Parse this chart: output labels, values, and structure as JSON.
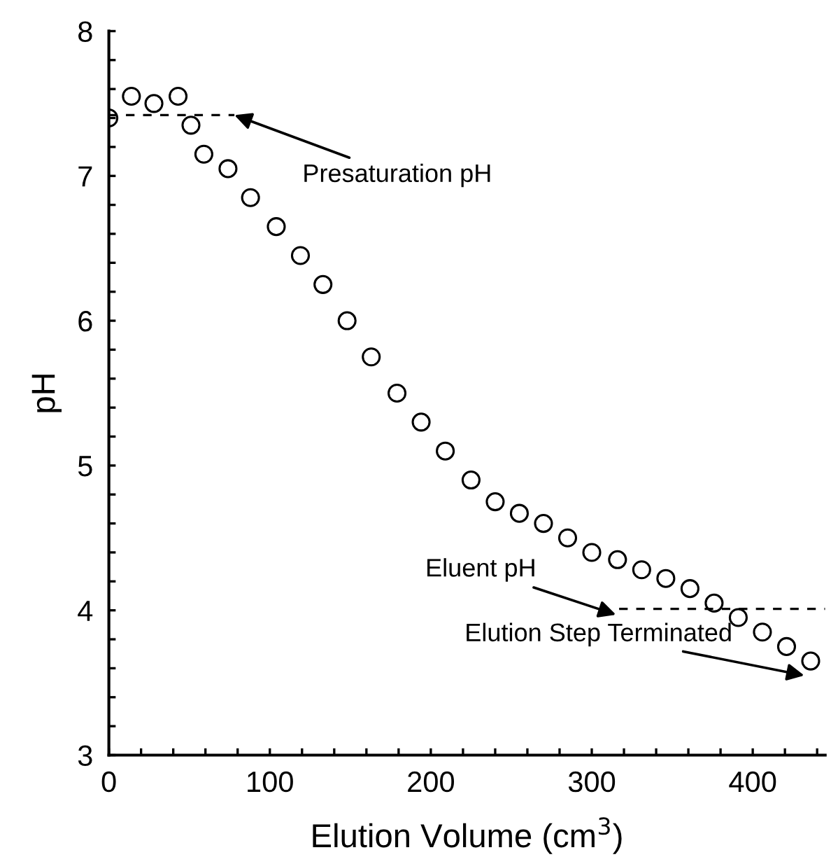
{
  "chart_data": {
    "type": "scatter",
    "xlabel": "Elution Volume (cm$^{3}$)",
    "ylabel": "pH",
    "xlim": [
      0,
      445
    ],
    "ylim": [
      3,
      8
    ],
    "xticks": [
      0,
      {
        "value": 20,
        "label": null
      },
      {
        "value": 40,
        "label": null
      },
      {
        "value": 60,
        "label": null
      },
      {
        "value": 80,
        "label": null
      },
      100,
      {
        "value": 120,
        "label": null
      },
      {
        "value": 140,
        "label": null
      },
      {
        "value": 160,
        "label": null
      },
      {
        "value": 180,
        "label": null
      },
      200,
      {
        "value": 220,
        "label": null
      },
      {
        "value": 240,
        "label": null
      },
      {
        "value": 260,
        "label": null
      },
      {
        "value": 280,
        "label": null
      },
      300,
      {
        "value": 320,
        "label": null
      },
      {
        "value": 340,
        "label": null
      },
      {
        "value": 360,
        "label": null
      },
      {
        "value": 380,
        "label": null
      },
      400,
      {
        "value": 420,
        "label": null
      },
      {
        "value": 440,
        "label": null
      }
    ],
    "yticks": [
      3,
      {
        "value": 3.2,
        "label": null
      },
      {
        "value": 3.4,
        "label": null
      },
      {
        "value": 3.6,
        "label": null
      },
      {
        "value": 3.8,
        "label": null
      },
      4,
      {
        "value": 4.2,
        "label": null
      },
      {
        "value": 4.4,
        "label": null
      },
      {
        "value": 4.6,
        "label": null
      },
      {
        "value": 4.8,
        "label": null
      },
      5,
      {
        "value": 5.2,
        "label": null
      },
      {
        "value": 5.4,
        "label": null
      },
      {
        "value": 5.6,
        "label": null
      },
      {
        "value": 5.8,
        "label": null
      },
      6,
      {
        "value": 6.2,
        "label": null
      },
      {
        "value": 6.4,
        "label": null
      },
      {
        "value": 6.6,
        "label": null
      },
      {
        "value": 6.8,
        "label": null
      },
      7,
      {
        "value": 7.2,
        "label": null
      },
      {
        "value": 7.4,
        "label": null
      },
      {
        "value": 7.6,
        "label": null
      },
      {
        "value": 7.8,
        "label": null
      },
      8
    ],
    "grid": false,
    "legend": false,
    "series": [
      {
        "color": "#000000",
        "marker": "circle",
        "x": [
          0,
          14,
          28,
          43,
          51,
          59,
          74,
          88,
          104,
          119,
          133,
          148,
          163,
          179,
          194,
          209,
          225,
          240,
          255,
          270,
          285,
          300,
          316,
          331,
          346,
          361,
          376,
          391,
          406,
          421,
          436
        ],
        "values": [
          7.4,
          7.55,
          7.5,
          7.55,
          7.35,
          7.15,
          7.05,
          6.85,
          6.65,
          6.45,
          6.25,
          6.0,
          5.75,
          5.5,
          5.3,
          5.1,
          4.9,
          4.75,
          4.67,
          4.6,
          4.5,
          4.4,
          4.35,
          4.28,
          4.22,
          4.15,
          4.05,
          3.95,
          3.85,
          3.75,
          3.65
        ]
      },
      {
        "type": "line",
        "color": "#000000",
        "line_style": "dashed",
        "marker": "none",
        "x": [
          0,
          78
        ],
        "values": [
          7.42,
          7.42
        ]
      },
      {
        "type": "line",
        "color": "#000000",
        "line_style": "dashed",
        "marker": "none",
        "x": [
          317,
          445
        ],
        "values": [
          4.01,
          4.01
        ]
      }
    ],
    "annotations": [
      {
        "text": "Presaturation pH",
        "x": 78,
        "y": 7.42
      },
      {
        "text": "Eluent pH",
        "x": 315,
        "y": 3.97
      },
      {
        "text": "Elution Step Terminated",
        "x": 432,
        "y": 3.55
      }
    ]
  }
}
